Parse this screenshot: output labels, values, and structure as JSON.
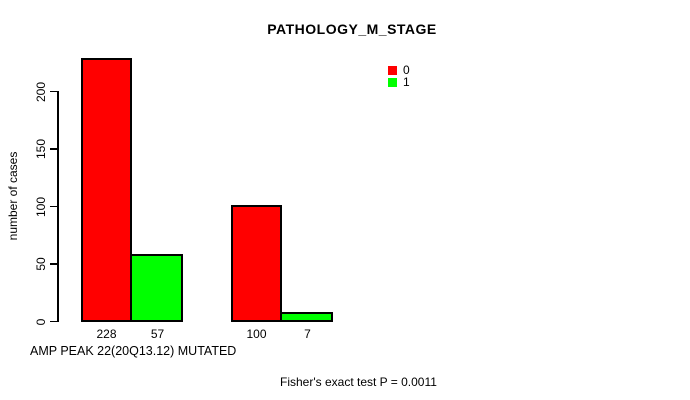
{
  "chart_data": {
    "type": "bar",
    "title": "PATHOLOGY_M_STAGE",
    "xlabel": "AMP PEAK 22(20Q13.12) MUTATED",
    "ylabel": "number of cases",
    "ylim": [
      0,
      230
    ],
    "yticks": [
      0,
      50,
      100,
      150,
      200
    ],
    "grid": false,
    "legend_position": "top-right",
    "series": [
      {
        "name": "0",
        "color": "#ff0000",
        "values": [
          228,
          100
        ]
      },
      {
        "name": "1",
        "color": "#00ff00",
        "values": [
          57,
          7
        ]
      }
    ],
    "bar_labels": [
      [
        "228",
        "57"
      ],
      [
        "100",
        "7"
      ]
    ],
    "annotation": "Fisher's exact test P = 0.0011",
    "bar_border_color": "#000000",
    "axis_color": "#000000"
  }
}
